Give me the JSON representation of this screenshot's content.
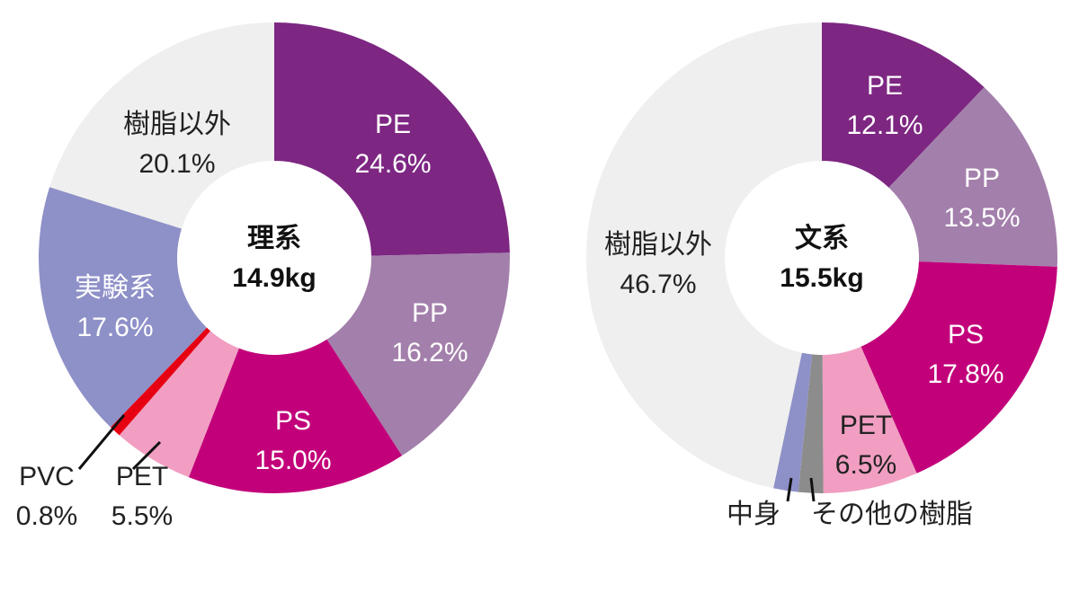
{
  "chart_data": [
    {
      "type": "pie",
      "center_title": "理系",
      "center_total": "14.9kg",
      "slices": [
        {
          "label": "PE",
          "value": 24.6,
          "value_text": "24.6%",
          "color": "#7d2682",
          "text_color": "#ffffff"
        },
        {
          "label": "PP",
          "value": 16.2,
          "value_text": "16.2%",
          "color": "#a37fab",
          "text_color": "#ffffff"
        },
        {
          "label": "PS",
          "value": 15.0,
          "value_text": "15.0%",
          "color": "#c2007a",
          "text_color": "#ffffff"
        },
        {
          "label": "PET",
          "value": 5.5,
          "value_text": "5.5%",
          "color": "#f19ec2",
          "text_color": "#222222"
        },
        {
          "label": "PVC",
          "value": 0.8,
          "value_text": "0.8%",
          "color": "#e60012",
          "text_color": "#222222"
        },
        {
          "label": "実験系",
          "value": 17.6,
          "value_text": "17.6%",
          "color": "#8e90c8",
          "text_color": "#ffffff"
        },
        {
          "label": "樹脂以外",
          "value": 20.1,
          "value_text": "20.1%",
          "color": "#efefef",
          "text_color": "#222222"
        }
      ]
    },
    {
      "type": "pie",
      "center_title": "文系",
      "center_total": "15.5kg",
      "slices": [
        {
          "label": "PE",
          "value": 12.1,
          "value_text": "12.1%",
          "color": "#7d2682",
          "text_color": "#ffffff"
        },
        {
          "label": "PP",
          "value": 13.5,
          "value_text": "13.5%",
          "color": "#a37fab",
          "text_color": "#ffffff"
        },
        {
          "label": "PS",
          "value": 17.8,
          "value_text": "17.8%",
          "color": "#c2007a",
          "text_color": "#ffffff"
        },
        {
          "label": "PET",
          "value": 6.5,
          "value_text": "6.5%",
          "color": "#f19ec2",
          "text_color": "#222222"
        },
        {
          "label": "その他の樹脂",
          "value": 1.7,
          "value_text": "",
          "color": "#8c8c8c",
          "text_color": "#222222"
        },
        {
          "label": "中身",
          "value": 1.7,
          "value_text": "",
          "color": "#8e90c8",
          "text_color": "#222222"
        },
        {
          "label": "樹脂以外",
          "value": 46.7,
          "value_text": "46.7%",
          "color": "#efefef",
          "text_color": "#222222"
        }
      ]
    }
  ]
}
